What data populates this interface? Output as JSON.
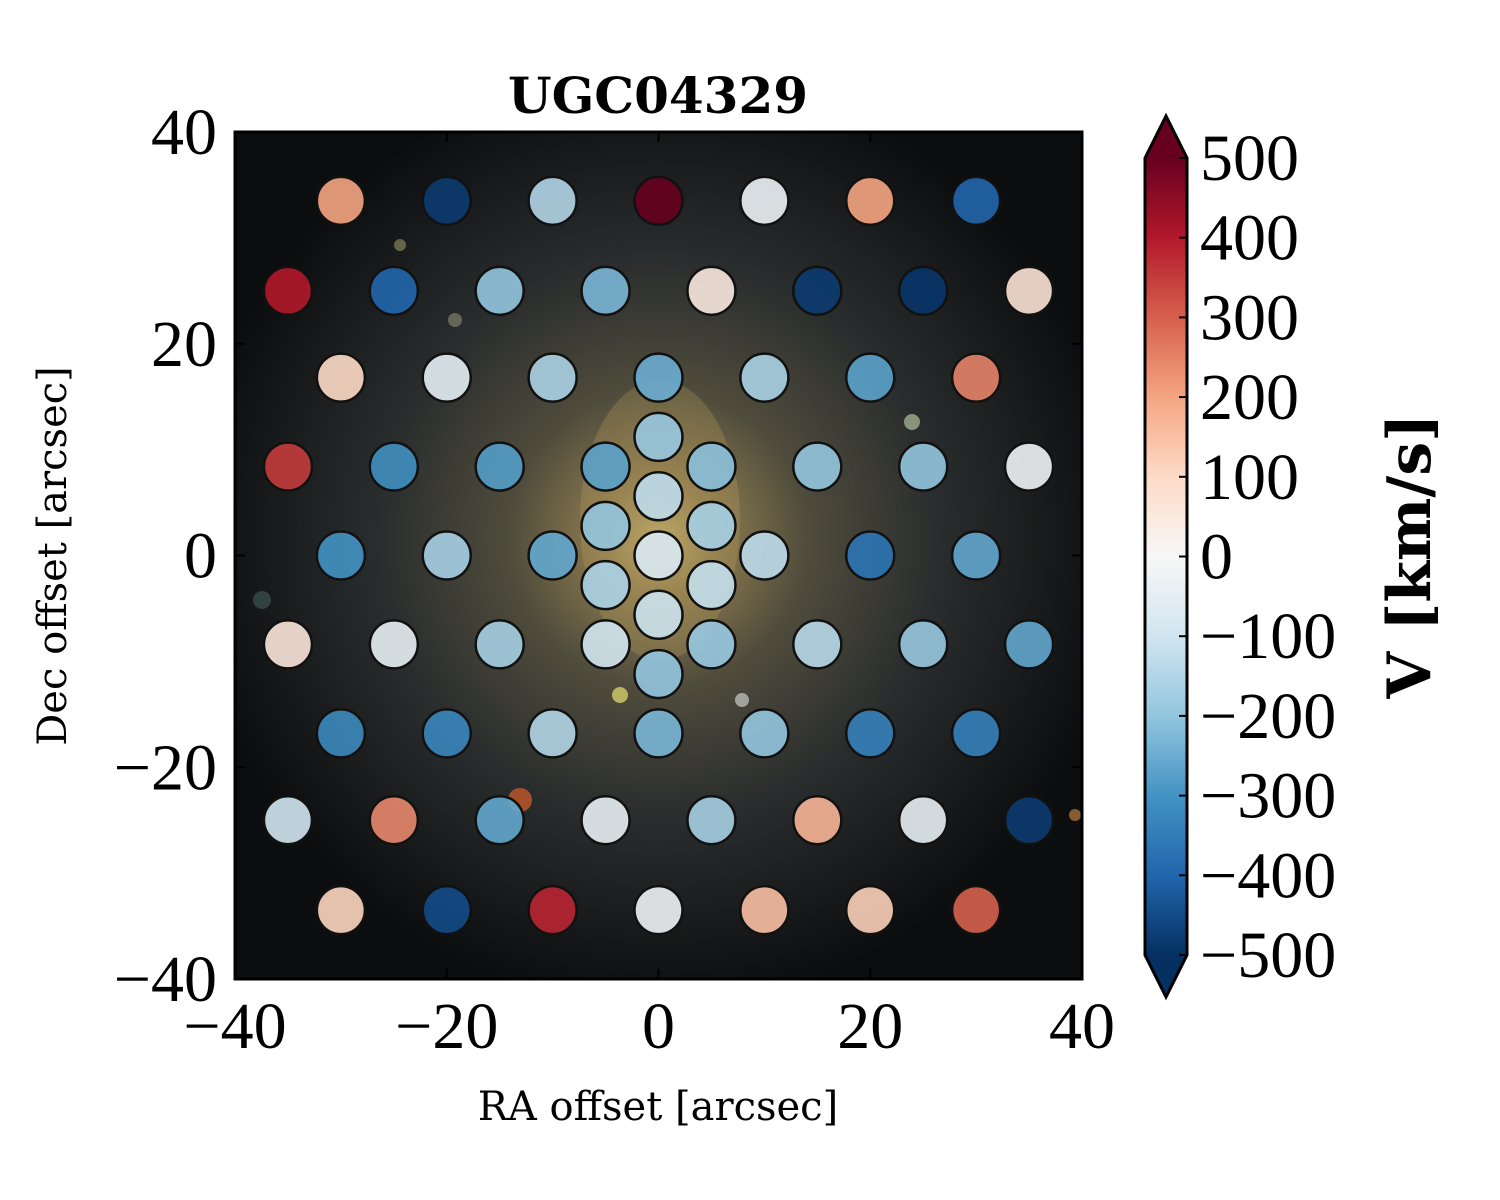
{
  "chart_data": {
    "type": "scatter",
    "title": "UGC04329",
    "xlabel": "RA offset [arcsec]",
    "ylabel": "Dec offset [arcsec]",
    "xlim": [
      -40,
      40
    ],
    "ylim": [
      -40,
      40
    ],
    "x_ticks": [
      -40,
      -20,
      0,
      20,
      40
    ],
    "y_ticks": [
      -40,
      -20,
      0,
      20,
      40
    ],
    "x_tick_labels": [
      "−40",
      "−20",
      "0",
      "20",
      "40"
    ],
    "y_tick_labels": [
      "−40",
      "−20",
      "0",
      "20",
      "40"
    ],
    "background": "galaxy image",
    "colorbar": {
      "label": "V [km/s]",
      "min": -500,
      "max": 500,
      "extend": "both",
      "colormap": "RdBu_r",
      "ticks": [
        500,
        400,
        300,
        200,
        100,
        0,
        -100,
        -200,
        -300,
        -400,
        -500
      ],
      "tick_labels": [
        "500",
        "400",
        "300",
        "200",
        "100",
        "0",
        "−100",
        "−200",
        "−300",
        "−400",
        "−500"
      ]
    },
    "points": [
      {
        "x": -30,
        "y": 33.5,
        "v": 200
      },
      {
        "x": -20,
        "y": 33.5,
        "v": -480
      },
      {
        "x": -10,
        "y": 33.5,
        "v": -150
      },
      {
        "x": 0,
        "y": 33.5,
        "v": 500
      },
      {
        "x": 10,
        "y": 33.5,
        "v": -30
      },
      {
        "x": 20,
        "y": 33.5,
        "v": 200
      },
      {
        "x": 30,
        "y": 33.5,
        "v": -400
      },
      {
        "x": -35,
        "y": 25,
        "v": 400
      },
      {
        "x": -25,
        "y": 25,
        "v": -400
      },
      {
        "x": -15,
        "y": 25,
        "v": -200
      },
      {
        "x": -5,
        "y": 25,
        "v": -230
      },
      {
        "x": 5,
        "y": 25,
        "v": 50
      },
      {
        "x": 15,
        "y": 25,
        "v": -480
      },
      {
        "x": 25,
        "y": 25,
        "v": -490
      },
      {
        "x": 35,
        "y": 25,
        "v": 70
      },
      {
        "x": -30,
        "y": 16.8,
        "v": 100
      },
      {
        "x": -20,
        "y": 16.8,
        "v": -50
      },
      {
        "x": -10,
        "y": 16.8,
        "v": -160
      },
      {
        "x": 0,
        "y": 16.8,
        "v": -250
      },
      {
        "x": 10,
        "y": 16.8,
        "v": -160
      },
      {
        "x": 20,
        "y": 16.8,
        "v": -270
      },
      {
        "x": 30,
        "y": 16.8,
        "v": 250
      },
      {
        "x": 0,
        "y": 11.2,
        "v": -190
      },
      {
        "x": -35,
        "y": 8.4,
        "v": 350
      },
      {
        "x": -25,
        "y": 8.4,
        "v": -310
      },
      {
        "x": -15,
        "y": 8.4,
        "v": -280
      },
      {
        "x": -5,
        "y": 8.4,
        "v": -270
      },
      {
        "x": 5,
        "y": 8.4,
        "v": -210
      },
      {
        "x": 15,
        "y": 8.4,
        "v": -200
      },
      {
        "x": 25,
        "y": 8.4,
        "v": -200
      },
      {
        "x": 35,
        "y": 8.4,
        "v": -20
      },
      {
        "x": 0,
        "y": 5.6,
        "v": -130
      },
      {
        "x": -5,
        "y": 2.8,
        "v": -200
      },
      {
        "x": 5,
        "y": 2.8,
        "v": -170
      },
      {
        "x": -30,
        "y": 0,
        "v": -300
      },
      {
        "x": -20,
        "y": 0,
        "v": -170
      },
      {
        "x": -10,
        "y": 0,
        "v": -260
      },
      {
        "x": 0,
        "y": 0,
        "v": -80
      },
      {
        "x": 10,
        "y": 0,
        "v": -130
      },
      {
        "x": 20,
        "y": 0,
        "v": -370
      },
      {
        "x": 30,
        "y": 0,
        "v": -260
      },
      {
        "x": -5,
        "y": -2.8,
        "v": -160
      },
      {
        "x": 5,
        "y": -2.8,
        "v": -120
      },
      {
        "x": 0,
        "y": -5.6,
        "v": -110
      },
      {
        "x": -35,
        "y": -8.4,
        "v": 60
      },
      {
        "x": -25,
        "y": -8.4,
        "v": -40
      },
      {
        "x": -15,
        "y": -8.4,
        "v": -170
      },
      {
        "x": -5,
        "y": -8.4,
        "v": -100
      },
      {
        "x": 5,
        "y": -8.4,
        "v": -190
      },
      {
        "x": 15,
        "y": -8.4,
        "v": -140
      },
      {
        "x": 25,
        "y": -8.4,
        "v": -190
      },
      {
        "x": 35,
        "y": -8.4,
        "v": -260
      },
      {
        "x": 0,
        "y": -11.2,
        "v": -200
      },
      {
        "x": -30,
        "y": -16.8,
        "v": -320
      },
      {
        "x": -20,
        "y": -16.8,
        "v": -330
      },
      {
        "x": -10,
        "y": -16.8,
        "v": -150
      },
      {
        "x": 0,
        "y": -16.8,
        "v": -230
      },
      {
        "x": 10,
        "y": -16.8,
        "v": -200
      },
      {
        "x": 20,
        "y": -16.8,
        "v": -340
      },
      {
        "x": 30,
        "y": -16.8,
        "v": -340
      },
      {
        "x": -35,
        "y": -25,
        "v": -100
      },
      {
        "x": -25,
        "y": -25,
        "v": 240
      },
      {
        "x": -15,
        "y": -25,
        "v": -260
      },
      {
        "x": -5,
        "y": -25,
        "v": -40
      },
      {
        "x": 5,
        "y": -25,
        "v": -170
      },
      {
        "x": 15,
        "y": -25,
        "v": 170
      },
      {
        "x": 25,
        "y": -25,
        "v": -40
      },
      {
        "x": 35,
        "y": -25,
        "v": -480
      },
      {
        "x": -30,
        "y": -33.5,
        "v": 110
      },
      {
        "x": -20,
        "y": -33.5,
        "v": -450
      },
      {
        "x": -10,
        "y": -33.5,
        "v": 380
      },
      {
        "x": 0,
        "y": -33.5,
        "v": -20
      },
      {
        "x": 10,
        "y": -33.5,
        "v": 150
      },
      {
        "x": 20,
        "y": -33.5,
        "v": 120
      },
      {
        "x": 30,
        "y": -33.5,
        "v": 300
      }
    ]
  }
}
